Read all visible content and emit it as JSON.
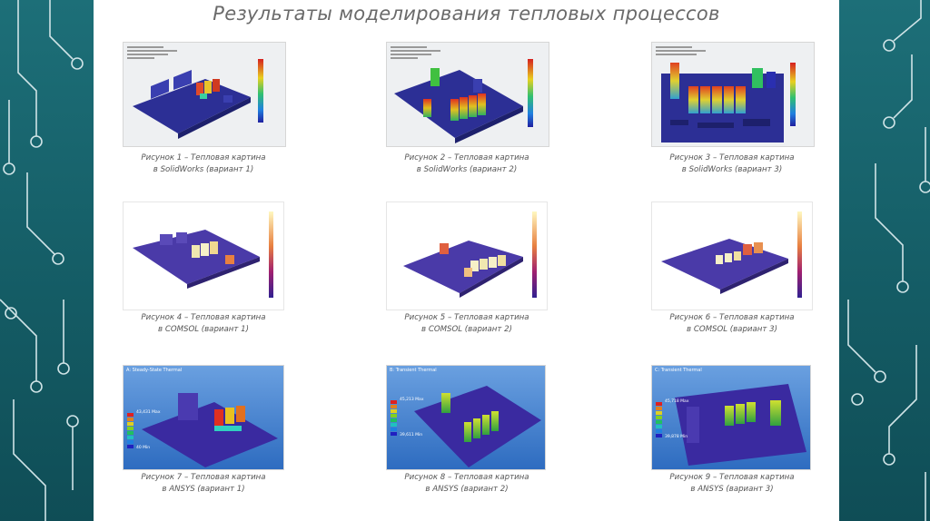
{
  "slide": {
    "title": "Результаты моделирования тепловых процессов"
  },
  "figures": [
    {
      "id": "1",
      "caption_line1": "Рисунок 1 – Тепловая картина",
      "caption_line2": "в SolidWorks (вариант 1)",
      "style": "solidworks"
    },
    {
      "id": "2",
      "caption_line1": "Рисунок 2 – Тепловая картина",
      "caption_line2": "в SolidWorks (вариант 2)",
      "style": "solidworks"
    },
    {
      "id": "3",
      "caption_line1": "Рисунок 3 – Тепловая картина",
      "caption_line2": "в SolidWorks (вариант 3)",
      "style": "solidworks"
    },
    {
      "id": "4",
      "caption_line1": "Рисунок 4 – Тепловая картина",
      "caption_line2": "в COMSOL (вариант 1)",
      "style": "comsol"
    },
    {
      "id": "5",
      "caption_line1": "Рисунок 5 – Тепловая картина",
      "caption_line2": "в COMSOL (вариант 2)",
      "style": "comsol"
    },
    {
      "id": "6",
      "caption_line1": "Рисунок 6 – Тепловая картина",
      "caption_line2": "в COMSOL (вариант 3)",
      "style": "comsol"
    },
    {
      "id": "7",
      "caption_line1": "Рисунок 7 – Тепловая картина",
      "caption_line2": "в ANSYS (вариант 1)",
      "style": "ansys",
      "panel_title": "A: Steady-State Thermal",
      "panel_max": "43,431 Max",
      "panel_min": "40 Min"
    },
    {
      "id": "8",
      "caption_line1": "Рисунок 8 – Тепловая картина",
      "caption_line2": "в ANSYS (вариант 2)",
      "style": "ansys",
      "panel_title": "B: Transient Thermal",
      "panel_max": "45,213 Max",
      "panel_min": "39,611 Min"
    },
    {
      "id": "9",
      "caption_line1": "Рисунок 9 – Тепловая картина",
      "caption_line2": "в ANSYS (вариант 3)",
      "style": "ansys",
      "panel_title": "C: Transient Thermal",
      "panel_max": "45,718 Max",
      "panel_min": "39,878 Min"
    }
  ],
  "colors": {
    "background_teal": "#13555e",
    "slide_white": "#ffffff",
    "model_base_blue": "#2a2f9a",
    "ansys_background": "#3b7fd1"
  }
}
